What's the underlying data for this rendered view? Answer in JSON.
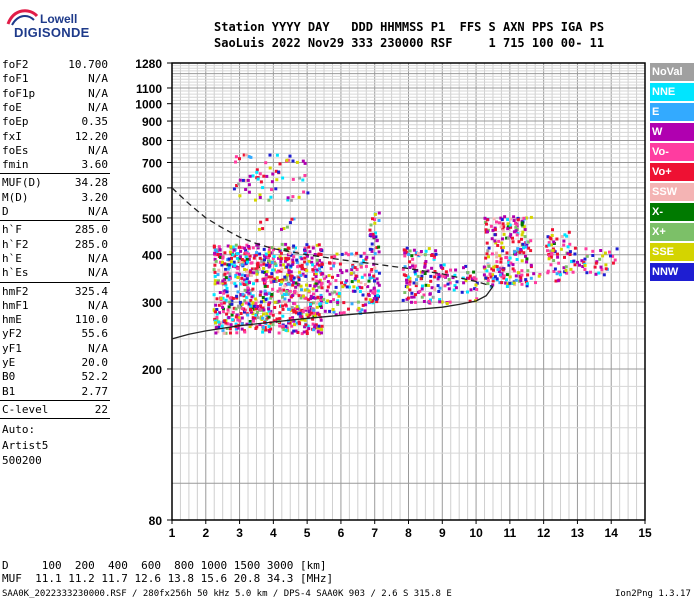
{
  "logo": {
    "top": "Lowell",
    "bottom": "DIGISONDE"
  },
  "header": {
    "line1": "Station YYYY DAY   DDD HHMMSS P1  FFS S AXN PPS IGA PS",
    "line2": "SaoLuis 2022 Nov29 333 230000 RSF     1 715 100 00- 11"
  },
  "params": {
    "group1": [
      {
        "label": "foF2",
        "value": "10.700"
      },
      {
        "label": "foF1",
        "value": "N/A"
      },
      {
        "label": "foF1p",
        "value": "N/A"
      },
      {
        "label": "foE",
        "value": "N/A"
      },
      {
        "label": "foEp",
        "value": "0.35"
      },
      {
        "label": "fxI",
        "value": "12.20"
      },
      {
        "label": "foEs",
        "value": "N/A"
      },
      {
        "label": "fmin",
        "value": "3.60"
      }
    ],
    "group2": [
      {
        "label": "MUF(D)",
        "value": "34.28"
      },
      {
        "label": "M(D)",
        "value": "3.20"
      },
      {
        "label": "D",
        "value": "N/A"
      }
    ],
    "group3": [
      {
        "label": "h`F",
        "value": "285.0"
      },
      {
        "label": "h`F2",
        "value": "285.0"
      },
      {
        "label": "h`E",
        "value": "N/A"
      },
      {
        "label": "h`Es",
        "value": "N/A"
      }
    ],
    "group4": [
      {
        "label": "hmF2",
        "value": "325.4"
      },
      {
        "label": "hmF1",
        "value": "N/A"
      },
      {
        "label": "hmE",
        "value": "110.0"
      },
      {
        "label": "yF2",
        "value": "55.6"
      },
      {
        "label": "yF1",
        "value": "N/A"
      },
      {
        "label": "yE",
        "value": "20.0"
      },
      {
        "label": "B0",
        "value": "52.2"
      },
      {
        "label": "B1",
        "value": "2.77"
      }
    ],
    "clevel": {
      "label": "C-level",
      "value": "22"
    },
    "auto": [
      "Auto:",
      "Artist5",
      "500200"
    ]
  },
  "legend": [
    {
      "label": "NoVal",
      "color": "#a0a0a0"
    },
    {
      "label": "NNE",
      "color": "#00e5ff"
    },
    {
      "label": "E",
      "color": "#33aaff"
    },
    {
      "label": "W",
      "color": "#b000b0"
    },
    {
      "label": "Vo-",
      "color": "#ff3ca0"
    },
    {
      "label": "Vo+",
      "color": "#ee1133"
    },
    {
      "label": "SSW",
      "color": "#f4b4b4"
    },
    {
      "label": "X-",
      "color": "#007a00"
    },
    {
      "label": "X+",
      "color": "#7cc068"
    },
    {
      "label": "SSE",
      "color": "#d4d400"
    },
    {
      "label": "NNW",
      "color": "#1e1ed2"
    }
  ],
  "muf_table": {
    "line1": "D     100  200  400  600  800 1000 1500 3000 [km]",
    "line2": "MUF  11.1 11.2 11.7 12.6 13.8 15.6 20.8 34.3 [MHz]"
  },
  "footer": {
    "file_info": "SAA0K_2022333230000.RSF / 280fx256h 50 kHz 5.0 km / DPS-4 SAA0K 903 / 2.6 S 315.8 E",
    "version": "Ion2Png 1.3.17"
  },
  "chart_data": {
    "type": "scatter",
    "title": "",
    "xlabel": "",
    "ylabel": "",
    "x_ticks": [
      1,
      2,
      3,
      4,
      5,
      6,
      7,
      8,
      9,
      10,
      11,
      12,
      13,
      14,
      15
    ],
    "y_ticks": [
      80,
      200,
      300,
      400,
      500,
      600,
      700,
      800,
      900,
      1000,
      1100,
      1280
    ],
    "xlim": [
      1,
      15
    ],
    "ylim": [
      80,
      1280
    ],
    "y_scale": "log",
    "grid": true,
    "traces": [
      {
        "name": "solid",
        "style": "solid",
        "x": [
          1.0,
          1.5,
          2.0,
          3.0,
          4.0,
          5.0,
          6.0,
          7.0,
          8.0,
          9.0,
          9.5,
          10.0,
          10.3,
          10.5
        ],
        "y": [
          240,
          247,
          252,
          260,
          266,
          272,
          277,
          282,
          286,
          291,
          296,
          302,
          312,
          330
        ]
      },
      {
        "name": "dashed",
        "style": "dashed",
        "x": [
          1.0,
          1.5,
          2.0,
          2.5,
          3.0,
          3.5,
          4.0,
          5.0,
          6.0,
          7.0,
          8.0,
          9.0,
          10.0,
          10.5
        ],
        "y": [
          600,
          545,
          500,
          470,
          445,
          428,
          415,
          400,
          388,
          378,
          368,
          356,
          340,
          330
        ]
      }
    ],
    "echo_clusters": [
      {
        "x": [
          2.2,
          5.4
        ],
        "y": [
          250,
          430
        ],
        "density": 0.8
      },
      {
        "x": [
          5.2,
          6.8
        ],
        "y": [
          280,
          410
        ],
        "density": 0.35
      },
      {
        "x": [
          6.8,
          7.1
        ],
        "y": [
          300,
          520
        ],
        "density": 0.6
      },
      {
        "x": [
          7.8,
          8.8
        ],
        "y": [
          300,
          420
        ],
        "density": 0.5
      },
      {
        "x": [
          8.8,
          10.0
        ],
        "y": [
          300,
          380
        ],
        "density": 0.35
      },
      {
        "x": [
          10.2,
          11.6
        ],
        "y": [
          330,
          510
        ],
        "density": 0.55
      },
      {
        "x": [
          12.0,
          12.8
        ],
        "y": [
          360,
          470
        ],
        "density": 0.45
      },
      {
        "x": [
          12.8,
          14.2
        ],
        "y": [
          355,
          420
        ],
        "density": 0.3
      },
      {
        "x": [
          2.8,
          5.0
        ],
        "y": [
          560,
          740
        ],
        "density": 0.18
      },
      {
        "x": [
          3.5,
          4.6
        ],
        "y": [
          470,
          520
        ],
        "density": 0.15
      },
      {
        "x": [
          10.2,
          12.5
        ],
        "y": [
          340,
          360
        ],
        "density": 0.3
      }
    ]
  }
}
